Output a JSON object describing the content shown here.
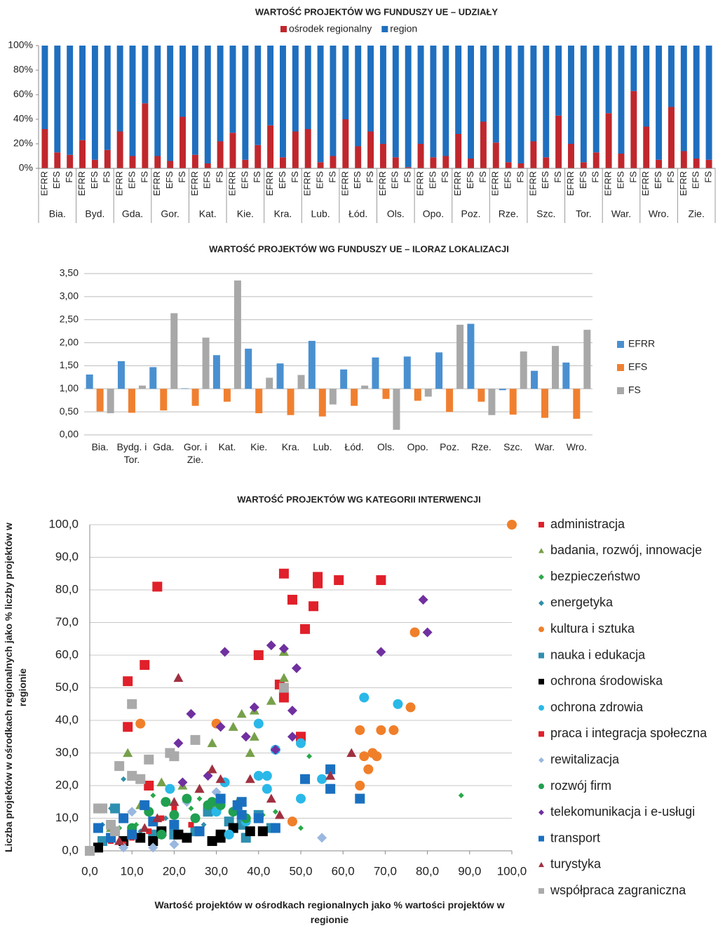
{
  "chart_data": [
    {
      "type": "bar",
      "stacked": true,
      "title": "WARTOŚĆ PROJEKTÓW WG FUNDUSZY UE – UDZIAŁY",
      "categories": [
        "EFRR",
        "EFS",
        "FS",
        "EFRR",
        "EFS",
        "FS",
        "EFRR",
        "EFS",
        "FS",
        "EFRR",
        "EFS",
        "FS",
        "EFRR",
        "EFS",
        "FS",
        "EFRR",
        "EFS",
        "FS",
        "EFRR",
        "EFS",
        "FS",
        "EFRR",
        "EFS",
        "FS",
        "EFRR",
        "EFS",
        "FS",
        "EFRR",
        "EFS",
        "FS",
        "EFRR",
        "EFS",
        "FS",
        "EFRR",
        "EFS",
        "FS",
        "EFRR",
        "EFS",
        "FS",
        "EFRR",
        "EFS",
        "FS",
        "EFRR",
        "EFS",
        "FS",
        "EFRR",
        "EFS",
        "FS",
        "EFRR",
        "EFS",
        "FS",
        "EFRR",
        "EFS",
        "FS"
      ],
      "groups": [
        "Bia.",
        "Byd.",
        "Gda.",
        "Gor.",
        "Kat.",
        "Kie.",
        "Kra.",
        "Lub.",
        "Łód.",
        "Ols.",
        "Opo.",
        "Poz.",
        "Rze.",
        "Szc.",
        "Tor.",
        "War.",
        "Wro.",
        "Zie."
      ],
      "series": [
        {
          "name": "ośrodek regionalny",
          "color": "#c0272d",
          "values": [
            32,
            13,
            11,
            23,
            7,
            15,
            30,
            10,
            53,
            10,
            6,
            42,
            11,
            4,
            22,
            29,
            7,
            19,
            35,
            9,
            30,
            32,
            5,
            10,
            40,
            18,
            30,
            20,
            9,
            1,
            20,
            9,
            10,
            28,
            8,
            38,
            21,
            5,
            4,
            22,
            9,
            43,
            20,
            5,
            13,
            45,
            12,
            63,
            34,
            7,
            50,
            14,
            8,
            7
          ]
        },
        {
          "name": "region",
          "color": "#1f6fbf",
          "values": [
            68,
            87,
            89,
            77,
            93,
            85,
            70,
            90,
            47,
            90,
            94,
            58,
            89,
            96,
            78,
            71,
            93,
            81,
            65,
            91,
            70,
            68,
            95,
            90,
            60,
            82,
            70,
            80,
            91,
            99,
            80,
            91,
            90,
            72,
            92,
            62,
            79,
            95,
            96,
            78,
            91,
            57,
            80,
            95,
            87,
            55,
            88,
            37,
            66,
            93,
            50,
            86,
            92,
            93
          ]
        }
      ],
      "ylim": [
        0,
        100
      ],
      "yticks": [
        {
          "value": 0,
          "label": "0%"
        },
        {
          "value": 20,
          "label": "20%"
        },
        {
          "value": 40,
          "label": "40%"
        },
        {
          "value": 60,
          "label": "60%"
        },
        {
          "value": 80,
          "label": "80%"
        },
        {
          "value": 100,
          "label": "100%"
        }
      ],
      "grid": false,
      "legend": "top"
    },
    {
      "type": "bar",
      "title": "WARTOŚĆ PROJEKTÓW WG FUNDUSZY UE – ILORAZ LOKALIZACJI",
      "categories": [
        "Bia.",
        "Bydg. i Tor.",
        "Gda.",
        "Gor. i Zie.",
        "Kat.",
        "Kie.",
        "Kra.",
        "Lub.",
        "Łód.",
        "Ols.",
        "Opo.",
        "Poz.",
        "Rze.",
        "Szc.",
        "War.",
        "Wro."
      ],
      "baseline": 1,
      "series": [
        {
          "name": "EFRR",
          "color": "#4a90d0",
          "values": [
            1.31,
            1.6,
            1.47,
            1.01,
            1.73,
            1.87,
            1.55,
            2.04,
            1.42,
            1.68,
            1.7,
            1.79,
            2.41,
            0.97,
            1.39,
            1.57
          ]
        },
        {
          "name": "EFS",
          "color": "#f08030",
          "values": [
            0.51,
            0.48,
            0.53,
            0.63,
            0.72,
            0.47,
            0.43,
            0.4,
            0.63,
            0.78,
            0.74,
            0.5,
            0.72,
            0.44,
            0.37,
            0.35
          ]
        },
        {
          "name": "FS",
          "color": "#a8a8a8",
          "values": [
            0.47,
            1.07,
            2.64,
            2.11,
            3.35,
            1.24,
            1.3,
            0.66,
            1.07,
            0.11,
            0.83,
            2.39,
            0.43,
            1.81,
            1.93,
            2.28
          ]
        }
      ],
      "ylim": [
        0,
        3.5
      ],
      "yticks": [
        {
          "value": 0,
          "label": "0,00"
        },
        {
          "value": 0.5,
          "label": "0,50"
        },
        {
          "value": 1,
          "label": "1,00"
        },
        {
          "value": 1.5,
          "label": "1,50"
        },
        {
          "value": 2,
          "label": "2,00"
        },
        {
          "value": 2.5,
          "label": "2,50"
        },
        {
          "value": 3,
          "label": "3,00"
        },
        {
          "value": 3.5,
          "label": "3,50"
        }
      ],
      "grid": true,
      "legend": "right"
    },
    {
      "type": "scatter",
      "title": "WARTOŚĆ PROJEKTÓW WG KATEGORII INTERWENCJI",
      "xlabel": "Wartość projektów w ośrodkach regionalnych jako % wartości projektów w regionie",
      "ylabel": "Liczba projektów w ośrodkach regionalnych jako % liczby projektów w regionie",
      "xlim": [
        0,
        100
      ],
      "ylim": [
        0,
        100
      ],
      "xticks": [
        {
          "value": 0,
          "label": "0,0"
        },
        {
          "value": 10,
          "label": "10,0"
        },
        {
          "value": 20,
          "label": "20,0"
        },
        {
          "value": 30,
          "label": "30,0"
        },
        {
          "value": 40,
          "label": "40,0"
        },
        {
          "value": 50,
          "label": "50,0"
        },
        {
          "value": 60,
          "label": "60,0"
        },
        {
          "value": 70,
          "label": "70,0"
        },
        {
          "value": 80,
          "label": "80,0"
        },
        {
          "value": 90,
          "label": "90,0"
        },
        {
          "value": 100,
          "label": "100,0"
        }
      ],
      "yticks": [
        {
          "value": 0,
          "label": "0,0"
        },
        {
          "value": 10,
          "label": "10,0"
        },
        {
          "value": 20,
          "label": "20,0"
        },
        {
          "value": 30,
          "label": "30,0"
        },
        {
          "value": 40,
          "label": "40,0"
        },
        {
          "value": 50,
          "label": "50,0"
        },
        {
          "value": 60,
          "label": "60,0"
        },
        {
          "value": 70,
          "label": "70,0"
        },
        {
          "value": 80,
          "label": "80,0"
        },
        {
          "value": 90,
          "label": "90,0"
        },
        {
          "value": 100,
          "label": "100,0"
        }
      ],
      "grid": true,
      "legend": "right",
      "series": [
        {
          "name": "administracja",
          "color": "#e0202a",
          "marker": "square",
          "x": [
            16,
            46,
            48,
            53,
            54,
            54,
            59,
            69,
            51,
            40,
            13,
            9,
            45,
            46,
            9,
            50,
            14
          ],
          "values": [
            81,
            85,
            77,
            75,
            84,
            82,
            83,
            83,
            68,
            60,
            57,
            52,
            51,
            47,
            38,
            35,
            20
          ]
        },
        {
          "name": "badania, rozwój, innowacje",
          "color": "#77a04a",
          "marker": "triangle",
          "x": [
            46,
            46,
            43,
            39,
            36,
            34,
            29,
            39,
            38,
            9,
            17,
            22,
            26,
            12,
            30,
            35,
            5
          ],
          "values": [
            61,
            53,
            46,
            43,
            42,
            38,
            33,
            35,
            30,
            30,
            21,
            20,
            19,
            14,
            14,
            15,
            7
          ]
        },
        {
          "name": "bezpieczeństwo",
          "color": "#2aa84a",
          "marker": "diamond-small",
          "x": [
            88,
            52,
            50,
            44,
            41,
            31,
            26,
            24,
            20,
            15,
            11,
            7
          ],
          "values": [
            17,
            29,
            7,
            12,
            11,
            13,
            16,
            13,
            8,
            17,
            8,
            7
          ]
        },
        {
          "name": "energetyka",
          "color": "#2e8fa8",
          "marker": "diamond-small",
          "x": [
            8,
            5,
            3,
            12,
            18,
            27
          ],
          "values": [
            22,
            13,
            8,
            6,
            10,
            8
          ]
        },
        {
          "name": "kultura i sztuka",
          "color": "#f07f2a",
          "marker": "circle",
          "x": [
            100,
            77,
            76,
            72,
            69,
            67,
            68,
            65,
            64,
            66,
            64,
            48,
            30,
            12
          ],
          "values": [
            100,
            67,
            44,
            37,
            37,
            30,
            29,
            29,
            37,
            25,
            20,
            9,
            39,
            39
          ]
        },
        {
          "name": "nauka i edukacja",
          "color": "#2e8fb0",
          "marker": "square",
          "x": [
            28,
            33,
            36,
            40,
            43,
            37,
            25,
            20,
            15,
            6,
            3
          ],
          "values": [
            12,
            9,
            8,
            11,
            7,
            4,
            6,
            5,
            5,
            13,
            3
          ]
        },
        {
          "name": "ochrona środowiska",
          "color": "#000000",
          "marker": "square",
          "x": [
            2,
            8,
            12,
            15,
            17,
            21,
            23,
            26,
            31,
            34,
            38,
            41,
            29,
            31
          ],
          "values": [
            1,
            3,
            4,
            3,
            6,
            5,
            4,
            6,
            5,
            7,
            6,
            6,
            3,
            4
          ]
        },
        {
          "name": "ochrona zdrowia",
          "color": "#2ab8e8",
          "marker": "circle",
          "x": [
            65,
            73,
            55,
            50,
            50,
            44,
            40,
            40,
            42,
            42,
            32,
            19,
            37,
            33,
            30
          ],
          "values": [
            47,
            45,
            22,
            33,
            16,
            31,
            39,
            23,
            23,
            19,
            21,
            19,
            9,
            5,
            12
          ]
        },
        {
          "name": "praca i integracja społeczna",
          "color": "#e0202a",
          "marker": "square-small",
          "x": [
            10,
            14,
            17,
            20,
            5,
            8,
            24
          ],
          "values": [
            4,
            6,
            10,
            13,
            3,
            2,
            8
          ]
        },
        {
          "name": "rewitalizacja",
          "color": "#9ab8e0",
          "marker": "diamond",
          "x": [
            55,
            30,
            23,
            20,
            15,
            8,
            10
          ],
          "values": [
            4,
            18,
            15,
            2,
            1,
            1,
            12
          ]
        },
        {
          "name": "rozwój firm",
          "color": "#20a050",
          "marker": "circle",
          "x": [
            18,
            20,
            23,
            25,
            28,
            29,
            31,
            34,
            37,
            10,
            14,
            17
          ],
          "values": [
            15,
            11,
            16,
            10,
            14,
            15,
            14,
            12,
            10,
            7,
            12,
            5
          ]
        },
        {
          "name": "telekomunikacja i e-usługi",
          "color": "#7030a0",
          "marker": "diamond",
          "x": [
            79,
            80,
            69,
            46,
            43,
            32,
            49,
            39,
            24,
            48,
            31,
            37,
            48,
            21,
            28,
            22,
            44
          ],
          "values": [
            77,
            67,
            61,
            62,
            63,
            61,
            56,
            44,
            42,
            43,
            38,
            35,
            35,
            33,
            23,
            21,
            31
          ]
        },
        {
          "name": "transport",
          "color": "#1a70c0",
          "marker": "square",
          "x": [
            57,
            51,
            57,
            64,
            44,
            40,
            36,
            31,
            36,
            35,
            26,
            20,
            15,
            8,
            13,
            10,
            5,
            2
          ],
          "values": [
            25,
            22,
            19,
            16,
            7,
            10,
            11,
            16,
            15,
            14,
            6,
            8,
            9,
            10,
            14,
            5,
            4,
            7
          ]
        },
        {
          "name": "turystyka",
          "color": "#a03040",
          "marker": "triangle",
          "x": [
            21,
            29,
            31,
            38,
            43,
            45,
            57,
            62,
            20,
            16,
            13,
            7,
            26
          ],
          "values": [
            53,
            25,
            22,
            22,
            16,
            11,
            23,
            30,
            15,
            10,
            7,
            3,
            19
          ]
        },
        {
          "name": "współpraca zagraniczna",
          "color": "#aaaaaa",
          "marker": "square",
          "x": [
            10,
            46,
            25,
            19,
            20,
            14,
            7,
            10,
            12,
            3,
            2,
            6,
            0,
            5
          ],
          "values": [
            45,
            50,
            34,
            30,
            29,
            28,
            26,
            23,
            22,
            13,
            13,
            6,
            0,
            8
          ]
        }
      ]
    }
  ]
}
